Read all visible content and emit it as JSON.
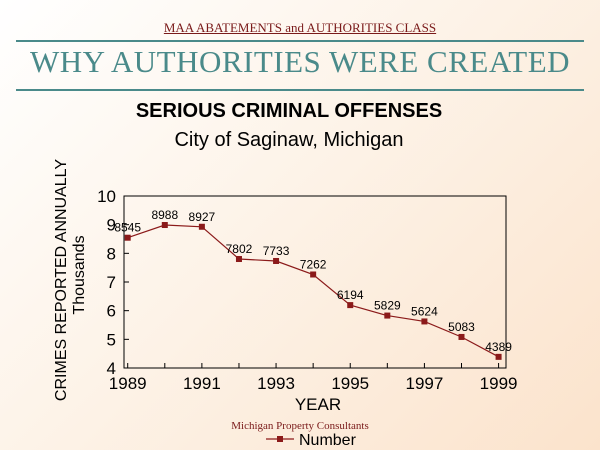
{
  "header": {
    "class_name": "MAA ABATEMENTS and AUTHORITIES CLASS",
    "slide_title": "WHY AUTHORITIES WERE CREATED"
  },
  "chart_data": {
    "type": "line",
    "title": "SERIOUS CRIMINAL OFFENSES",
    "subtitle": "City of Saginaw, Michigan",
    "xlabel": "YEAR",
    "ylabel": "CRIMES REPORTED ANNUALLY",
    "ylabel_unit": "Thousands",
    "x": [
      1989,
      1990,
      1991,
      1992,
      1993,
      1994,
      1995,
      1996,
      1997,
      1998,
      1999
    ],
    "series": [
      {
        "name": "Number",
        "values": [
          8.545,
          8.988,
          8.927,
          7.802,
          7.733,
          7.262,
          6.194,
          5.829,
          5.624,
          5.083,
          4.389
        ],
        "data_labels": [
          "8545",
          "8988",
          "8927",
          "7802",
          "7733",
          "7262",
          "6194",
          "5829",
          "5624",
          "5083",
          "4389"
        ],
        "color": "#8b1a1a"
      }
    ],
    "xlim": [
      1988.9,
      1999.2
    ],
    "ylim": [
      4,
      10
    ],
    "x_ticks": [
      "1989",
      "1991",
      "1993",
      "1995",
      "1997",
      "1999"
    ],
    "y_ticks": [
      "4",
      "5",
      "6",
      "7",
      "8",
      "9",
      "10"
    ],
    "grid": false,
    "legend_position": "bottom"
  },
  "footer": {
    "credit": "Michigan Property Consultants"
  }
}
